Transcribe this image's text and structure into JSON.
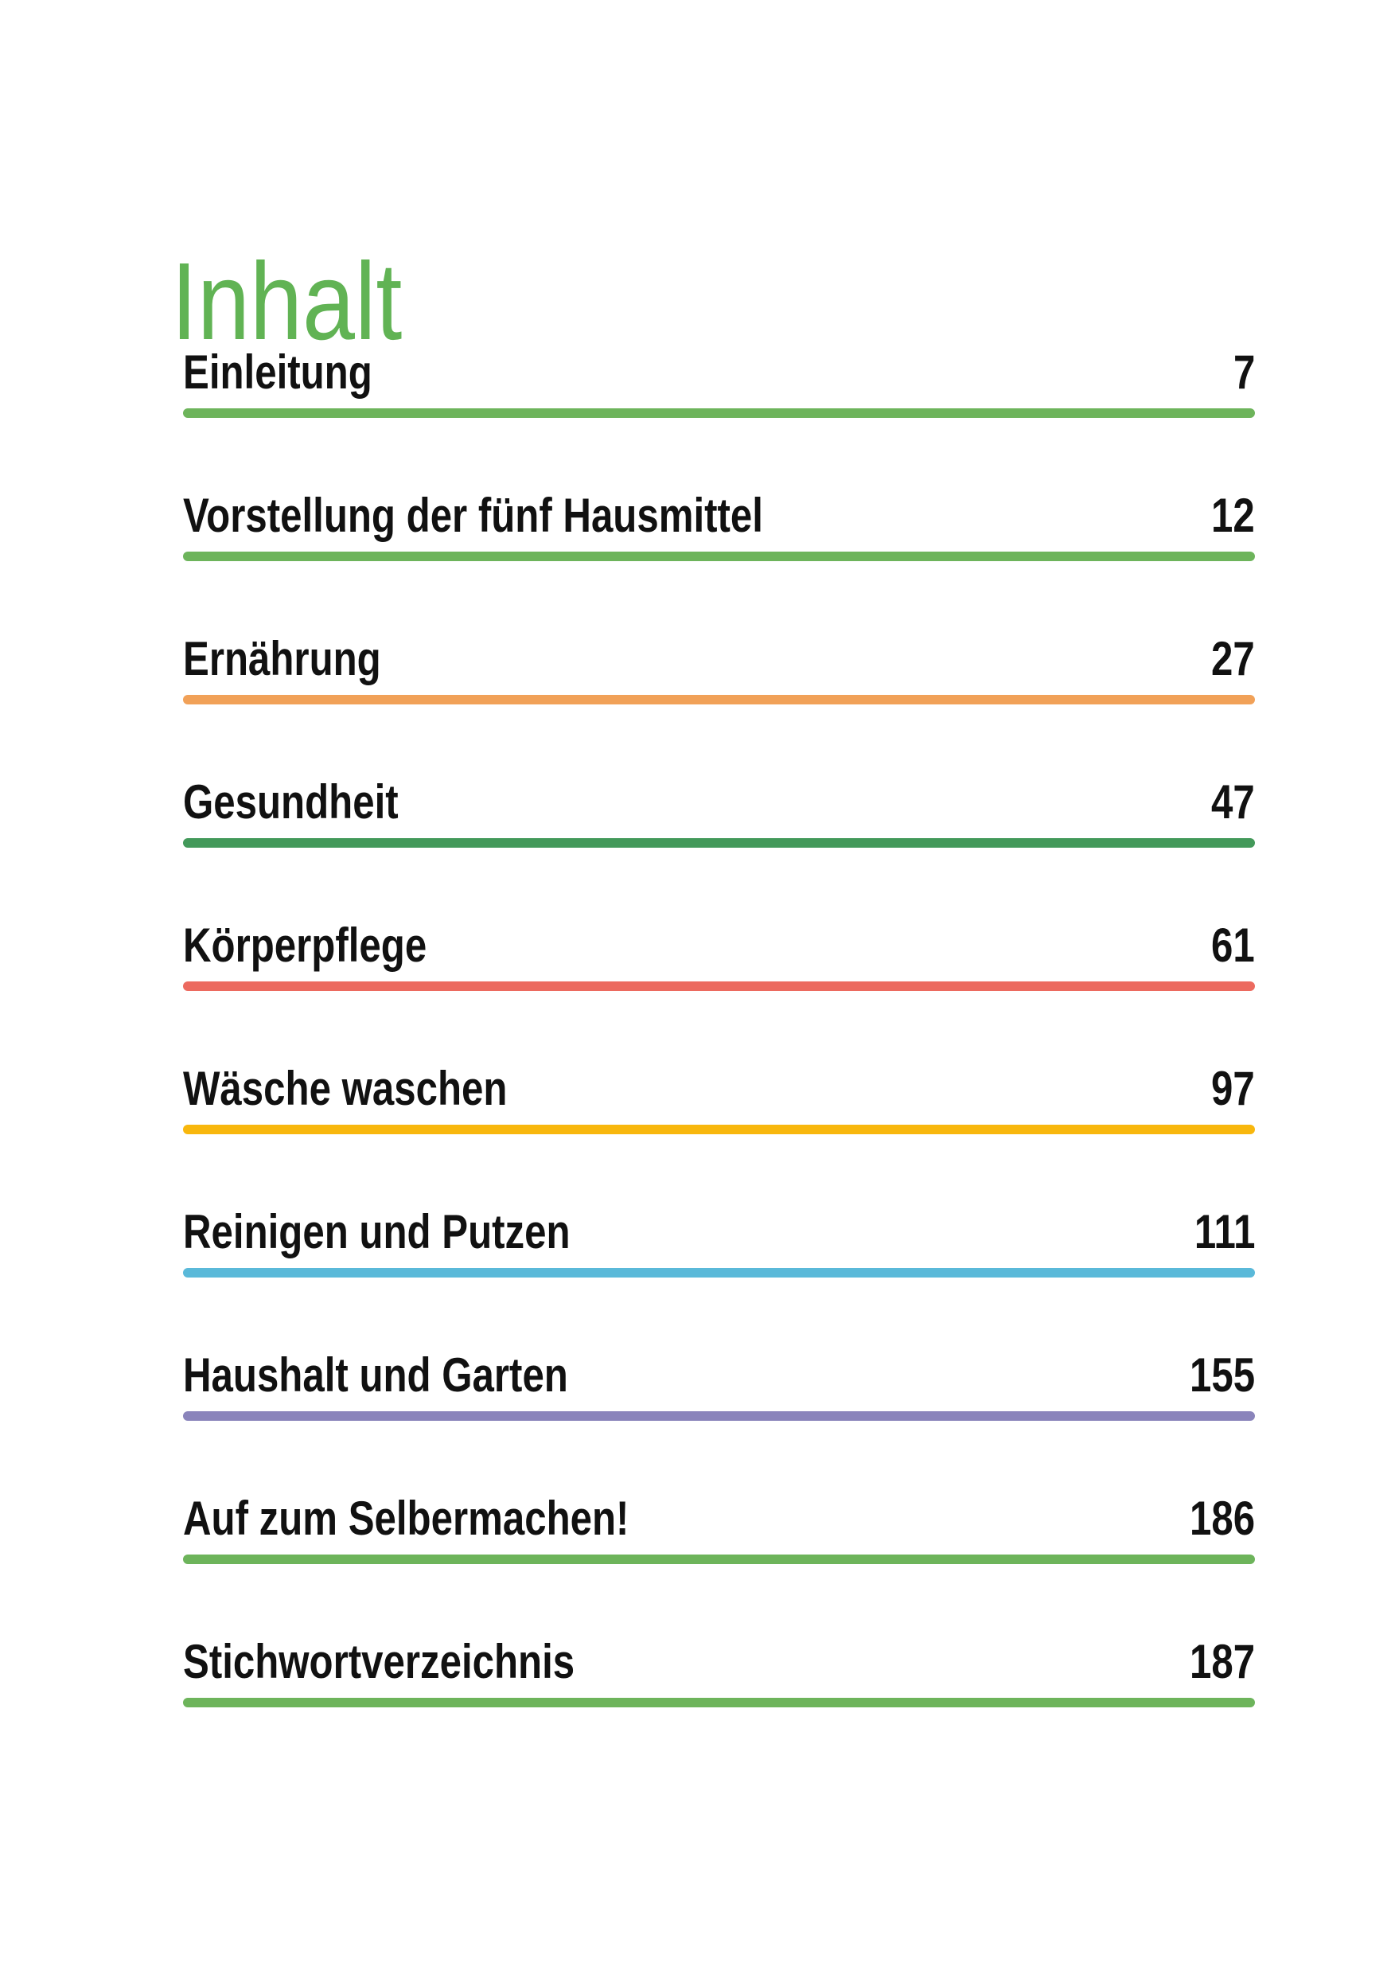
{
  "page": {
    "background": "#ffffff",
    "text_color": "#111111",
    "title": "Inhalt",
    "title_color": "#61b354"
  },
  "toc": {
    "entries": [
      {
        "label": "Einleitung",
        "page_number": "7",
        "rule_color": "#6db45b"
      },
      {
        "label": "Vorstellung der fünf Hausmittel",
        "page_number": "12",
        "rule_color": "#6db45b"
      },
      {
        "label": "Ernährung",
        "page_number": "27",
        "rule_color": "#f1a158"
      },
      {
        "label": "Gesundheit",
        "page_number": "47",
        "rule_color": "#43995a"
      },
      {
        "label": "Körperpflege",
        "page_number": "61",
        "rule_color": "#ec6a5f"
      },
      {
        "label": "Wäsche waschen",
        "page_number": "97",
        "rule_color": "#f8b70d"
      },
      {
        "label": "Reinigen und Putzen",
        "page_number": "111",
        "rule_color": "#5ab9d9"
      },
      {
        "label": "Haushalt und Garten",
        "page_number": "155",
        "rule_color": "#8a84bb"
      },
      {
        "label": "Auf zum Selbermachen!",
        "page_number": "186",
        "rule_color": "#6db45b"
      },
      {
        "label": "Stichwortverzeichnis",
        "page_number": "187",
        "rule_color": "#6db45b"
      }
    ]
  }
}
